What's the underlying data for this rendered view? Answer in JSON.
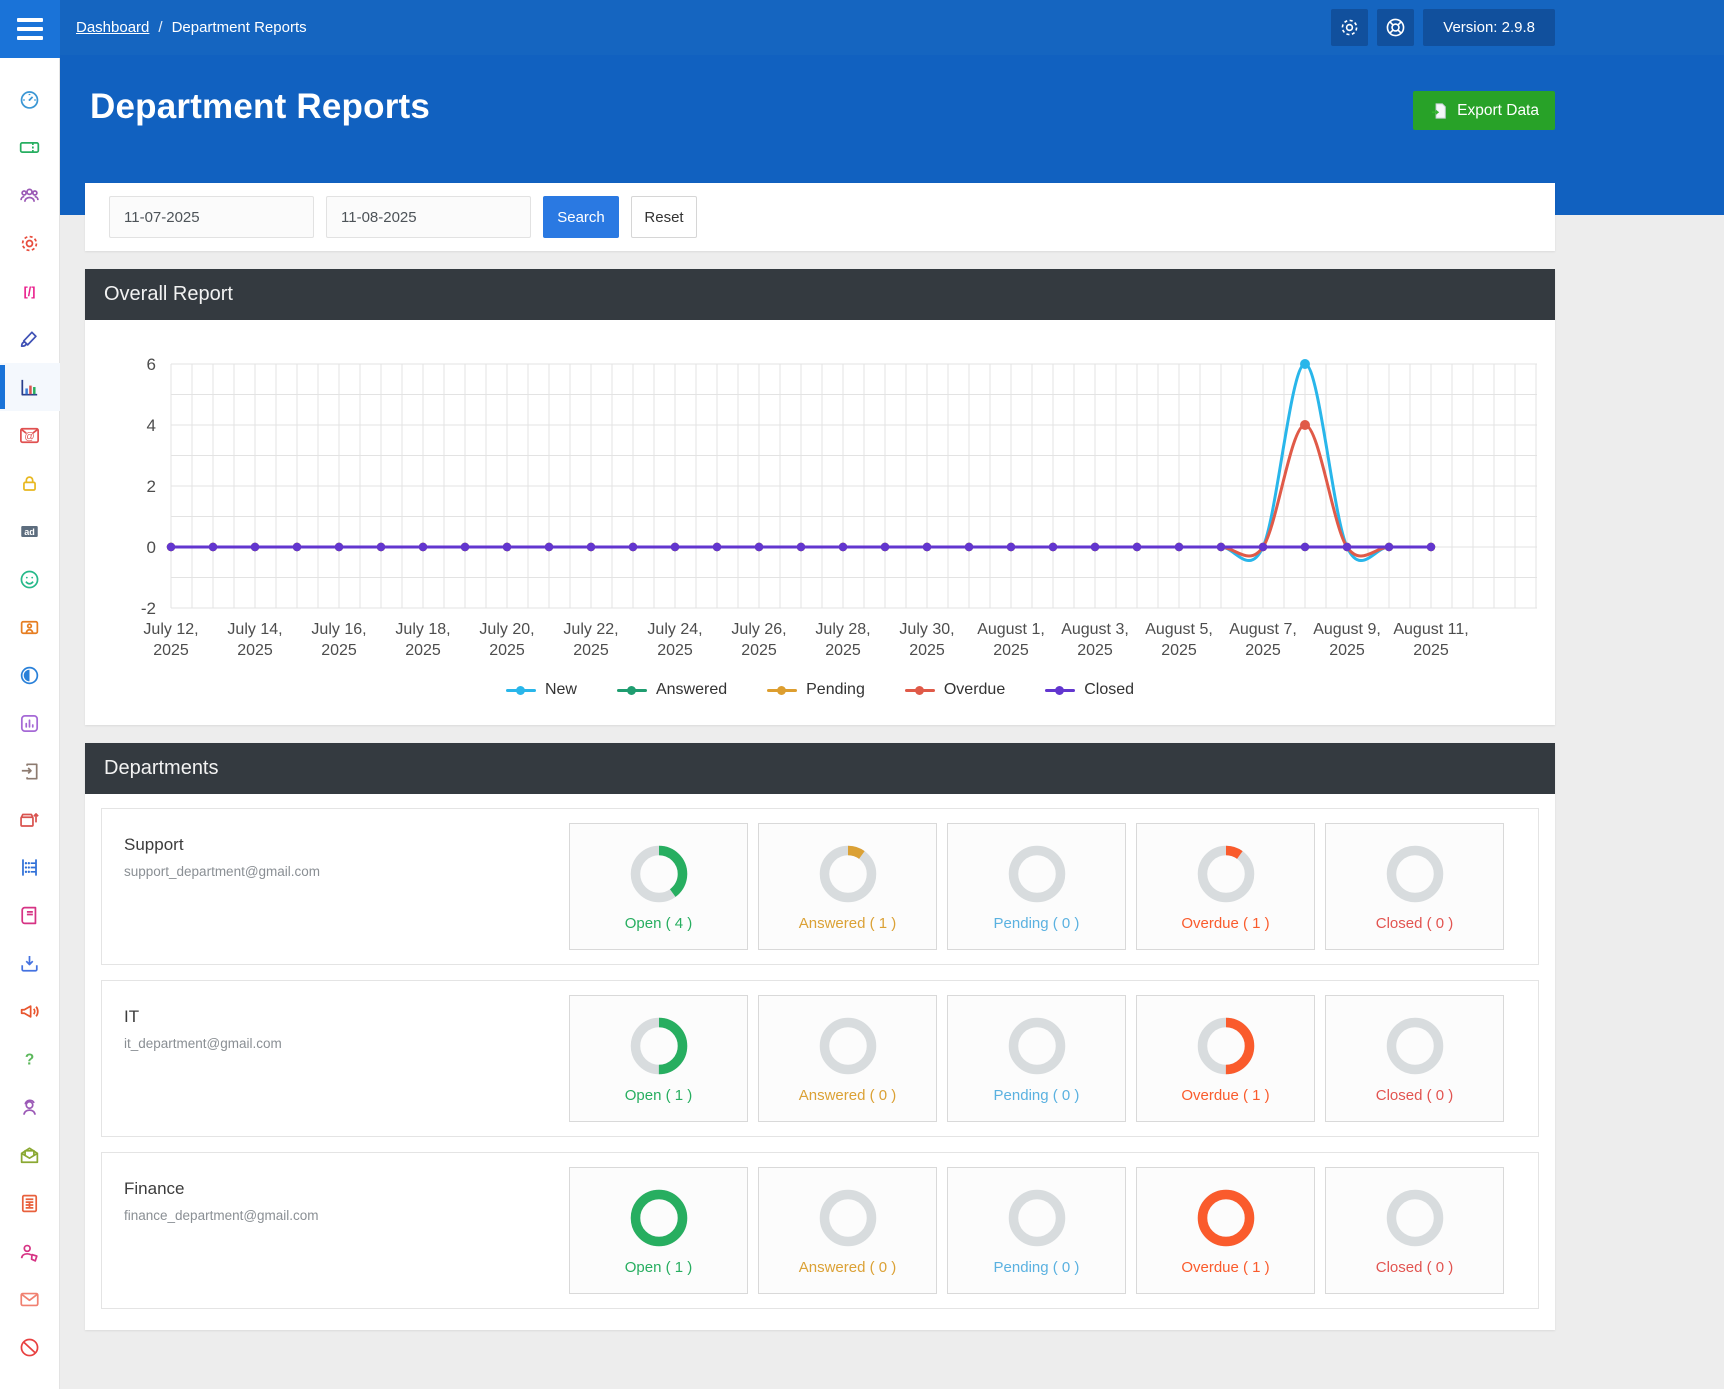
{
  "app": {
    "version_label": "Version: 2.9.8"
  },
  "breadcrumb": {
    "link": "Dashboard",
    "separator": "/",
    "current": "Department Reports"
  },
  "header": {
    "title": "Department Reports",
    "export_label": "Export Data"
  },
  "filters": {
    "date_from": "11-07-2025",
    "date_to": "11-08-2025",
    "search_label": "Search",
    "reset_label": "Reset"
  },
  "panels": {
    "overall_title": "Overall Report",
    "departments_title": "Departments"
  },
  "colors": {
    "topbar": "#1565c0",
    "hero": "#1161c0",
    "accent": "#1a73d8",
    "export_green": "#28a228",
    "search_blue": "#2a79e2",
    "panel_head": "#343a40",
    "donut_track": "#d8dcde"
  },
  "chart_data": {
    "type": "line",
    "title": "Overall Report",
    "categories": [
      "July 12, 2025",
      "July 13, 2025",
      "July 14, 2025",
      "July 15, 2025",
      "July 16, 2025",
      "July 17, 2025",
      "July 18, 2025",
      "July 19, 2025",
      "July 20, 2025",
      "July 21, 2025",
      "July 22, 2025",
      "July 23, 2025",
      "July 24, 2025",
      "July 25, 2025",
      "July 26, 2025",
      "July 27, 2025",
      "July 28, 2025",
      "July 29, 2025",
      "July 30, 2025",
      "July 31, 2025",
      "August 1, 2025",
      "August 2, 2025",
      "August 3, 2025",
      "August 4, 2025",
      "August 5, 2025",
      "August 6, 2025",
      "August 7, 2025",
      "August 8, 2025",
      "August 9, 2025",
      "August 10, 2025",
      "August 11, 2025"
    ],
    "tick_every": 2,
    "series": [
      {
        "name": "New",
        "color": "#29b6ea",
        "values": [
          0,
          0,
          0,
          0,
          0,
          0,
          0,
          0,
          0,
          0,
          0,
          0,
          0,
          0,
          0,
          0,
          0,
          0,
          0,
          0,
          0,
          0,
          0,
          0,
          0,
          0,
          0,
          6,
          0,
          0,
          0
        ]
      },
      {
        "name": "Answered",
        "color": "#1f9d70",
        "values": [
          0,
          0,
          0,
          0,
          0,
          0,
          0,
          0,
          0,
          0,
          0,
          0,
          0,
          0,
          0,
          0,
          0,
          0,
          0,
          0,
          0,
          0,
          0,
          0,
          0,
          0,
          0,
          0,
          0,
          0,
          0
        ]
      },
      {
        "name": "Pending",
        "color": "#dd9e2f",
        "values": [
          0,
          0,
          0,
          0,
          0,
          0,
          0,
          0,
          0,
          0,
          0,
          0,
          0,
          0,
          0,
          0,
          0,
          0,
          0,
          0,
          0,
          0,
          0,
          0,
          0,
          0,
          0,
          0,
          0,
          0,
          0
        ]
      },
      {
        "name": "Overdue",
        "color": "#e05a48",
        "values": [
          0,
          0,
          0,
          0,
          0,
          0,
          0,
          0,
          0,
          0,
          0,
          0,
          0,
          0,
          0,
          0,
          0,
          0,
          0,
          0,
          0,
          0,
          0,
          0,
          0,
          0,
          0,
          4,
          0,
          0,
          0
        ]
      },
      {
        "name": "Closed",
        "color": "#6236cf",
        "values": [
          0,
          0,
          0,
          0,
          0,
          0,
          0,
          0,
          0,
          0,
          0,
          0,
          0,
          0,
          0,
          0,
          0,
          0,
          0,
          0,
          0,
          0,
          0,
          0,
          0,
          0,
          0,
          0,
          0,
          0,
          0
        ]
      }
    ],
    "ylim": [
      -2,
      6
    ],
    "yticks": [
      -2,
      0,
      2,
      4,
      6
    ],
    "grid": true,
    "legend_position": "bottom"
  },
  "departments": [
    {
      "name": "Support",
      "email": "support_department@gmail.com",
      "stats": [
        {
          "label": "Open",
          "count": 4,
          "display": "Open ( 4 )",
          "percent": 40,
          "color": "#27ae60"
        },
        {
          "label": "Answered",
          "count": 1,
          "display": "Answered ( 1 )",
          "percent": 10,
          "color": "#dba135"
        },
        {
          "label": "Pending",
          "count": 0,
          "display": "Pending ( 0 )",
          "percent": 0,
          "color": "#5ab1e0"
        },
        {
          "label": "Overdue",
          "count": 1,
          "display": "Overdue ( 1 )",
          "percent": 10,
          "color": "#fa5b2c"
        },
        {
          "label": "Closed",
          "count": 0,
          "display": "Closed ( 0 )",
          "percent": 0,
          "color": "#e25450"
        }
      ]
    },
    {
      "name": "IT",
      "email": "it_department@gmail.com",
      "stats": [
        {
          "label": "Open",
          "count": 1,
          "display": "Open ( 1 )",
          "percent": 50,
          "color": "#27ae60"
        },
        {
          "label": "Answered",
          "count": 0,
          "display": "Answered ( 0 )",
          "percent": 0,
          "color": "#dba135"
        },
        {
          "label": "Pending",
          "count": 0,
          "display": "Pending ( 0 )",
          "percent": 0,
          "color": "#5ab1e0"
        },
        {
          "label": "Overdue",
          "count": 1,
          "display": "Overdue ( 1 )",
          "percent": 50,
          "color": "#fa5b2c"
        },
        {
          "label": "Closed",
          "count": 0,
          "display": "Closed ( 0 )",
          "percent": 0,
          "color": "#e25450"
        }
      ]
    },
    {
      "name": "Finance",
      "email": "finance_department@gmail.com",
      "stats": [
        {
          "label": "Open",
          "count": 1,
          "display": "Open ( 1 )",
          "percent": 100,
          "color": "#27ae60"
        },
        {
          "label": "Answered",
          "count": 0,
          "display": "Answered ( 0 )",
          "percent": 0,
          "color": "#dba135"
        },
        {
          "label": "Pending",
          "count": 0,
          "display": "Pending ( 0 )",
          "percent": 0,
          "color": "#5ab1e0"
        },
        {
          "label": "Overdue",
          "count": 1,
          "display": "Overdue ( 1 )",
          "percent": 100,
          "color": "#fa5b2c"
        },
        {
          "label": "Closed",
          "count": 0,
          "display": "Closed ( 0 )",
          "percent": 0,
          "color": "#e25450"
        }
      ]
    }
  ],
  "sidebar": {
    "items": [
      {
        "icon": "dashboard-icon",
        "color": "#3a96d4",
        "active": false
      },
      {
        "icon": "ticket-icon",
        "color": "#27ae60",
        "active": false
      },
      {
        "icon": "users-icon",
        "color": "#9b59b6",
        "active": false
      },
      {
        "icon": "gear-icon",
        "color": "#e74c3c",
        "active": false
      },
      {
        "icon": "shortcode-icon",
        "color": "#e91e8c",
        "active": false
      },
      {
        "icon": "brush-icon",
        "color": "#3f51b5",
        "active": false
      },
      {
        "icon": "bar-chart-icon",
        "color": "#2b3f8c",
        "active": true
      },
      {
        "icon": "email-at-icon",
        "color": "#e05050",
        "active": false
      },
      {
        "icon": "lock-icon",
        "color": "#e8b820",
        "active": false
      },
      {
        "icon": "ad-icon",
        "color": "#5d6d7e",
        "active": false
      },
      {
        "icon": "smiley-icon",
        "color": "#26b98a",
        "active": false
      },
      {
        "icon": "id-card-icon",
        "color": "#e67e22",
        "active": false
      },
      {
        "icon": "contrast-icon",
        "color": "#2980d9",
        "active": false
      },
      {
        "icon": "chart-box-icon",
        "color": "#a569d6",
        "active": false
      },
      {
        "icon": "import-icon",
        "color": "#8d7b70",
        "active": false
      },
      {
        "icon": "box-upload-icon",
        "color": "#d9534f",
        "active": false
      },
      {
        "icon": "abacus-icon",
        "color": "#2e6fd8",
        "active": false
      },
      {
        "icon": "book-icon",
        "color": "#d63384",
        "active": false
      },
      {
        "icon": "download-icon",
        "color": "#4472e0",
        "active": false
      },
      {
        "icon": "megaphone-icon",
        "color": "#e8552e",
        "active": false
      },
      {
        "icon": "question-icon",
        "color": "#5cb85c",
        "active": false
      },
      {
        "icon": "headset-user-icon",
        "color": "#9b59b6",
        "active": false
      },
      {
        "icon": "open-mail-icon",
        "color": "#8aa832",
        "active": false
      },
      {
        "icon": "invoice-icon",
        "color": "#e8603c",
        "active": false
      },
      {
        "icon": "user-tag-icon",
        "color": "#d63384",
        "active": false
      },
      {
        "icon": "mail-icon",
        "color": "#f08070",
        "active": false
      },
      {
        "icon": "ban-icon",
        "color": "#e84040",
        "active": false
      }
    ]
  }
}
